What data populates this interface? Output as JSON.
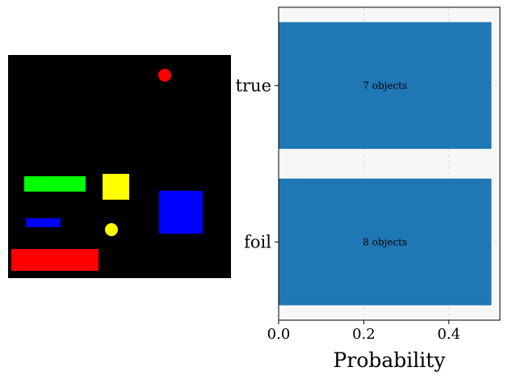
{
  "scene": {
    "background": "#000000",
    "shapes": [
      {
        "kind": "circle",
        "color": "#ff0000"
      },
      {
        "kind": "rect",
        "color": "#00ff00"
      },
      {
        "kind": "square",
        "color": "#ffff00"
      },
      {
        "kind": "square",
        "color": "#0000ff"
      },
      {
        "kind": "rect",
        "color": "#0000ff"
      },
      {
        "kind": "circle",
        "color": "#ffff00"
      },
      {
        "kind": "rect",
        "color": "#ff0000"
      }
    ]
  },
  "chart_data": {
    "type": "bar",
    "orientation": "horizontal",
    "categories": [
      "true",
      "foil"
    ],
    "values": [
      0.5,
      0.5
    ],
    "bar_labels": [
      "7 objects",
      "8 objects"
    ],
    "xlabel": "Probability",
    "xlim": [
      0,
      0.52
    ],
    "xticks": [
      "0.0",
      "0.2",
      "0.4"
    ],
    "bar_color": "#1f77b4",
    "plot_background": "#f7f7f7",
    "grid": true
  }
}
